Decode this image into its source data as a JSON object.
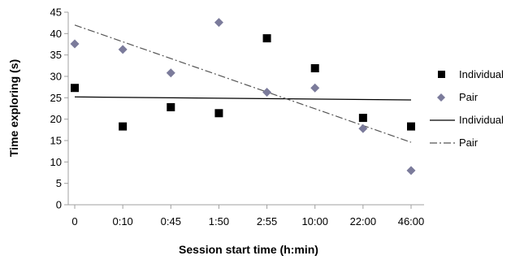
{
  "chart_data": {
    "type": "scatter",
    "title": "",
    "xlabel": "Session start time (h:min)",
    "ylabel": "Time exploring (s)",
    "categories": [
      "0",
      "0:10",
      "0:45",
      "1:50",
      "2:55",
      "10:00",
      "22:00",
      "46:00"
    ],
    "ylim": [
      0,
      45
    ],
    "yticks": [
      0,
      5,
      10,
      15,
      20,
      25,
      30,
      35,
      40,
      45
    ],
    "grid": false,
    "legend_position": "right",
    "series": [
      {
        "name": "Individual",
        "kind": "points",
        "marker": "square",
        "color": "#000000",
        "values": [
          27.3,
          18.3,
          22.8,
          21.4,
          38.9,
          31.9,
          20.3,
          18.3
        ]
      },
      {
        "name": "Pair",
        "kind": "points",
        "marker": "diamond",
        "color": "#7b7b9b",
        "values": [
          37.6,
          36.3,
          30.8,
          42.6,
          26.3,
          27.3,
          17.8,
          8.0
        ]
      },
      {
        "name": "Individual",
        "kind": "trendline",
        "linestyle": "solid",
        "color": "#000000",
        "y_start": 25.2,
        "y_end": 24.5
      },
      {
        "name": "Pair",
        "kind": "trendline",
        "linestyle": "dash-dot",
        "color": "#555555",
        "y_start": 42.0,
        "y_end": 14.6
      }
    ]
  }
}
